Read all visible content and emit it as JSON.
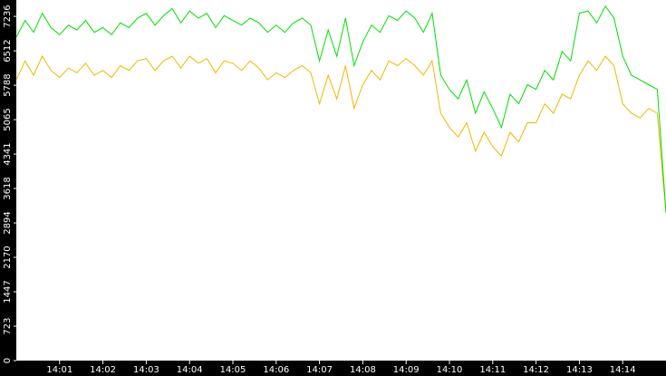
{
  "chart_data": {
    "type": "line",
    "x": [
      840,
      840.2,
      840.4,
      840.6,
      840.8,
      841,
      841.2,
      841.4,
      841.6,
      841.8,
      842,
      842.2,
      842.4,
      842.6,
      842.8,
      843,
      843.2,
      843.4,
      843.6,
      843.8,
      844,
      844.2,
      844.4,
      844.6,
      844.8,
      845,
      845.2,
      845.4,
      845.6,
      845.8,
      846,
      846.2,
      846.4,
      846.6,
      846.8,
      847,
      847.2,
      847.4,
      847.6,
      847.8,
      848,
      848.2,
      848.4,
      848.6,
      848.8,
      849,
      849.2,
      849.4,
      849.6,
      849.8,
      850,
      850.2,
      850.4,
      850.6,
      850.8,
      851,
      851.2,
      851.4,
      851.6,
      851.8,
      852,
      852.2,
      852.4,
      852.6,
      852.8,
      853,
      853.2,
      853.4,
      853.6,
      853.8,
      854,
      854.2,
      854.4,
      854.6,
      854.8,
      855
    ],
    "series": [
      {
        "color": "#f2b600",
        "values": [
          5900,
          6300,
          6000,
          6400,
          6100,
          5950,
          6150,
          6050,
          6250,
          6000,
          6100,
          5950,
          6200,
          6100,
          6300,
          6350,
          6100,
          6300,
          6400,
          6150,
          6400,
          6250,
          6350,
          6050,
          6300,
          6250,
          6100,
          6300,
          6150,
          5900,
          6050,
          5950,
          6100,
          6200,
          6050,
          5400,
          6000,
          5500,
          6200,
          5300,
          5800,
          6100,
          5900,
          6300,
          6200,
          6350,
          6200,
          6000,
          6300,
          5200,
          4900,
          4700,
          5000,
          4400,
          4800,
          4500,
          4300,
          4800,
          4600,
          5000,
          5000,
          5400,
          5200,
          5600,
          5500,
          6000,
          6300,
          6100,
          6400,
          6200,
          5400,
          5200,
          5100,
          5300,
          5200,
          3100
        ]
      },
      {
        "color": "#00e000",
        "values": [
          6800,
          7150,
          6900,
          7300,
          7000,
          6850,
          7050,
          6950,
          7150,
          6900,
          7000,
          6850,
          7100,
          7000,
          7200,
          7300,
          7050,
          7250,
          7400,
          7100,
          7350,
          7200,
          7300,
          7000,
          7250,
          7150,
          7050,
          7200,
          7100,
          6900,
          7050,
          6900,
          7100,
          7200,
          7050,
          6300,
          6950,
          6400,
          7200,
          6200,
          6700,
          7050,
          6900,
          7250,
          7150,
          7350,
          7200,
          6900,
          7300,
          6000,
          5700,
          5500,
          5900,
          5200,
          5650,
          5300,
          4900,
          5600,
          5400,
          5800,
          5700,
          6100,
          5900,
          6500,
          6300,
          7300,
          7350,
          7100,
          7450,
          7200,
          6400,
          6000,
          5900,
          5800,
          5700,
          3100
        ]
      }
    ],
    "xlim": [
      840,
      855
    ],
    "xticks": [
      {
        "value": 841,
        "label": "14:01"
      },
      {
        "value": 842,
        "label": "14:02"
      },
      {
        "value": 843,
        "label": "14:03"
      },
      {
        "value": 844,
        "label": "14:04"
      },
      {
        "value": 845,
        "label": "14:05"
      },
      {
        "value": 846,
        "label": "14:06"
      },
      {
        "value": 847,
        "label": "14:07"
      },
      {
        "value": 848,
        "label": "14:08"
      },
      {
        "value": 849,
        "label": "14:09"
      },
      {
        "value": 850,
        "label": "14:10"
      },
      {
        "value": 851,
        "label": "14:11"
      },
      {
        "value": 852,
        "label": "14:12"
      },
      {
        "value": 853,
        "label": "14:13"
      },
      {
        "value": 854,
        "label": "14:14"
      }
    ],
    "ylim": [
      0,
      7580
    ],
    "yticks": [
      0,
      723,
      1447,
      2170,
      2894,
      3618,
      4341,
      5065,
      5788,
      6512,
      7236
    ]
  }
}
